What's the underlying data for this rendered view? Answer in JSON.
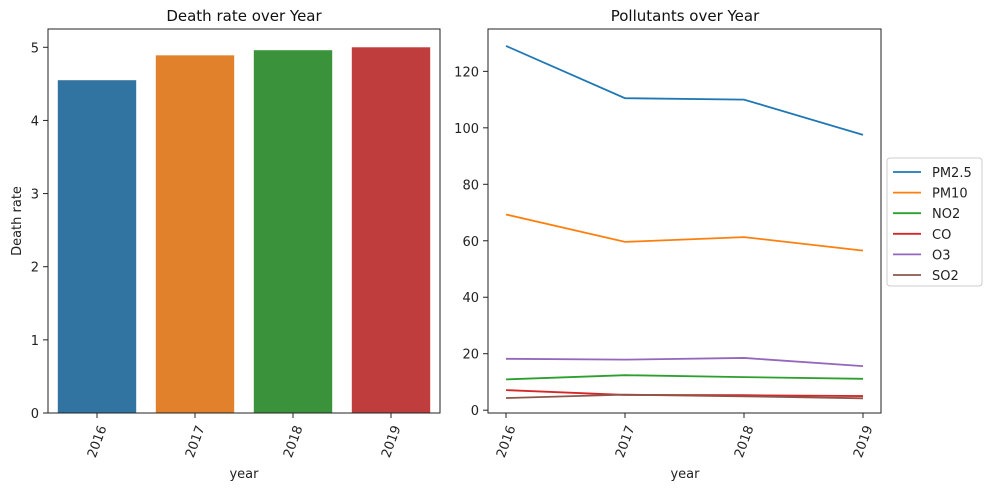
{
  "chart_data": [
    {
      "type": "bar",
      "title": "Death rate over Year",
      "xlabel": "year",
      "ylabel": "Death rate",
      "categories": [
        "2016",
        "2017",
        "2018",
        "2019"
      ],
      "values": [
        4.55,
        4.89,
        4.96,
        5.0
      ],
      "colors": [
        "#3274a1",
        "#e1812c",
        "#3a923a",
        "#c03d3e"
      ],
      "ylim": [
        0,
        5.25
      ],
      "yticks": [
        0,
        1,
        2,
        3,
        4,
        5
      ],
      "grid": false
    },
    {
      "type": "line",
      "title": "Pollutants over Year",
      "xlabel": "year",
      "ylabel": "",
      "x": [
        "2016",
        "2017",
        "2018",
        "2019"
      ],
      "ylim": [
        -1,
        135
      ],
      "yticks": [
        0,
        20,
        40,
        60,
        80,
        100,
        120
      ],
      "legend_position": "outside-right",
      "grid": false,
      "series": [
        {
          "name": "PM2.5",
          "color": "#1f77b4",
          "values": [
            129,
            110.5,
            110,
            97.5
          ]
        },
        {
          "name": "PM10",
          "color": "#ff7f0e",
          "values": [
            69.3,
            59.6,
            61.3,
            56.5
          ]
        },
        {
          "name": "NO2",
          "color": "#2ca02c",
          "values": [
            10.9,
            12.4,
            11.7,
            11.1
          ]
        },
        {
          "name": "CO",
          "color": "#d62728",
          "values": [
            7.1,
            5.4,
            5.3,
            5.0
          ]
        },
        {
          "name": "O3",
          "color": "#9467bd",
          "values": [
            18.2,
            17.9,
            18.5,
            15.6
          ]
        },
        {
          "name": "SO2",
          "color": "#8c564b",
          "values": [
            4.3,
            5.5,
            4.9,
            4.2
          ]
        }
      ]
    }
  ]
}
